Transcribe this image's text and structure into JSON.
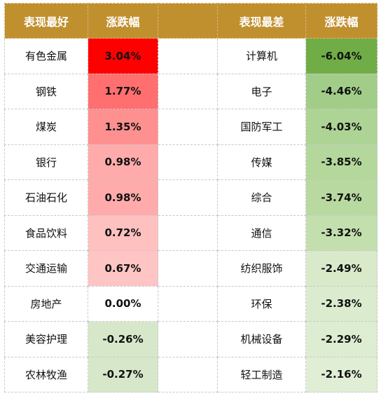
{
  "headers": {
    "best_label": "表现最好",
    "best_change": "涨跌幅",
    "worst_label": "表现最差",
    "worst_change": "涨跌幅"
  },
  "rows": [
    {
      "best_name": "有色金属",
      "best_value": "3.04%",
      "best_color": "#ff0000",
      "worst_name": "计算机",
      "worst_value": "-6.04%",
      "worst_color": "#70ad47"
    },
    {
      "best_name": "钢铁",
      "best_value": "1.77%",
      "best_color": "#ff6f6f",
      "worst_name": "电子",
      "worst_value": "-4.46%",
      "worst_color": "#a1cd89"
    },
    {
      "best_name": "煤炭",
      "best_value": "1.35%",
      "best_color": "#ff9090",
      "worst_name": "国防军工",
      "worst_value": "-4.03%",
      "worst_color": "#aed495"
    },
    {
      "best_name": "银行",
      "best_value": "0.98%",
      "best_color": "#ffabab",
      "worst_name": "传媒",
      "worst_value": "-3.85%",
      "worst_color": "#b4d79c"
    },
    {
      "best_name": "石油石化",
      "best_value": "0.98%",
      "best_color": "#ffabab",
      "worst_name": "综合",
      "worst_value": "-3.74%",
      "worst_color": "#b8d9a0"
    },
    {
      "best_name": "食品饮料",
      "best_value": "0.72%",
      "best_color": "#ffc0c0",
      "worst_name": "通信",
      "worst_value": "-3.32%",
      "worst_color": "#c3dfae"
    },
    {
      "best_name": "交通运输",
      "best_value": "0.67%",
      "best_color": "#ffc4c4",
      "worst_name": "纺织服饰",
      "worst_value": "-2.49%",
      "worst_color": "#d8eaca"
    },
    {
      "best_name": "房地产",
      "best_value": "0.00%",
      "best_color": "#ffffff",
      "worst_name": "环保",
      "worst_value": "-2.38%",
      "worst_color": "#dbecce"
    },
    {
      "best_name": "美容护理",
      "best_value": "-0.26%",
      "best_color": "#d6e8c9",
      "worst_name": "机械设备",
      "worst_value": "-2.29%",
      "worst_color": "#ddedd1"
    },
    {
      "best_name": "农林牧渔",
      "best_value": "-0.27%",
      "best_color": "#d6e8c9",
      "worst_name": "轻工制造",
      "worst_value": "-2.16%",
      "worst_color": "#e0eed5"
    }
  ]
}
